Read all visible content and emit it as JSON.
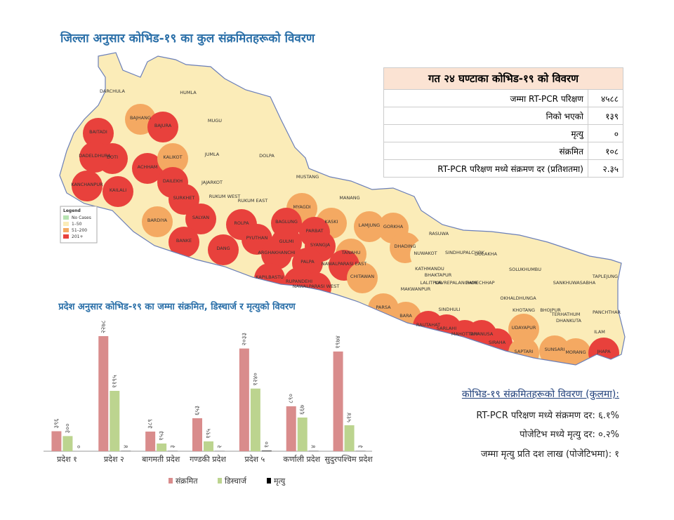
{
  "header": {
    "title": "जिल्ला अनुसार कोभिड-१९ का कुल संक्रमितहरूको विवरण"
  },
  "table": {
    "title": "गत २४ घण्टाका कोभिड-१९ को विवरण",
    "rows": [
      [
        "जम्मा RT-PCR परिक्षण",
        "४५८८"
      ],
      [
        "निको भएको",
        "१३९"
      ],
      [
        "मृत्यु",
        "०"
      ],
      [
        "संक्रमित",
        "१०८"
      ],
      [
        "RT-PCR परिक्षण मध्ये संक्रमण दर (प्रतिशतमा)",
        "२.३५"
      ]
    ]
  },
  "map": {
    "legend": {
      "title": "Legend",
      "items": [
        {
          "label": "No Cases",
          "color": "#b6e3b0"
        },
        {
          "label": "1–50",
          "color": "#fbecb8"
        },
        {
          "label": "51–200",
          "color": "#f4a962"
        },
        {
          "label": "201+",
          "color": "#e8413c"
        }
      ]
    },
    "districts": [
      {
        "label": "DARCHULA",
        "color": "#fbecb8"
      },
      {
        "label": "HUMLA",
        "color": "#fbecb8"
      },
      {
        "label": "BAJHANG",
        "color": "#f4a962"
      },
      {
        "label": "BAJURA",
        "color": "#e8413c"
      },
      {
        "label": "MUGU",
        "color": "#fbecb8"
      },
      {
        "label": "BAITADI",
        "color": "#e8413c"
      },
      {
        "label": "DOTI",
        "color": "#e8413c"
      },
      {
        "label": "DADELDHURA",
        "color": "#e8413c"
      },
      {
        "label": "ACHHAM",
        "color": "#e8413c"
      },
      {
        "label": "KALIKOT",
        "color": "#f4a962"
      },
      {
        "label": "JUMLA",
        "color": "#fbecb8"
      },
      {
        "label": "DOLPA",
        "color": "#fbecb8"
      },
      {
        "label": "KANCHANPUR",
        "color": "#e8413c"
      },
      {
        "label": "KAILALI",
        "color": "#e8413c"
      },
      {
        "label": "DAILEKH",
        "color": "#e8413c"
      },
      {
        "label": "JAJARKOT",
        "color": "#fbecb8"
      },
      {
        "label": "RUKUM WEST",
        "color": "#fbecb8"
      },
      {
        "label": "RUKUM EAST",
        "color": "#fbecb8"
      },
      {
        "label": "MUSTANG",
        "color": "#fbecb8"
      },
      {
        "label": "MANANG",
        "color": "#fbecb8"
      },
      {
        "label": "MYAGDI",
        "color": "#f4a962"
      },
      {
        "label": "SURKHET",
        "color": "#e8413c"
      },
      {
        "label": "BARDIYA",
        "color": "#f4a962"
      },
      {
        "label": "SALYAN",
        "color": "#e8413c"
      },
      {
        "label": "BAGLUNG",
        "color": "#e8413c"
      },
      {
        "label": "ROLPA",
        "color": "#e8413c"
      },
      {
        "label": "KASKI",
        "color": "#f4a962"
      },
      {
        "label": "LAMJUNG",
        "color": "#f4a962"
      },
      {
        "label": "GORKHA",
        "color": "#f4a962"
      },
      {
        "label": "RASUWA",
        "color": "#fbecb8"
      },
      {
        "label": "PARBAT",
        "color": "#e8413c"
      },
      {
        "label": "BANKE",
        "color": "#e8413c"
      },
      {
        "label": "DANG",
        "color": "#e8413c"
      },
      {
        "label": "PYUTHAN",
        "color": "#e8413c"
      },
      {
        "label": "GULMI",
        "color": "#e8413c"
      },
      {
        "label": "SYANGJA",
        "color": "#e8413c"
      },
      {
        "label": "TANAHU",
        "color": "#f4a962"
      },
      {
        "label": "DHADING",
        "color": "#f4a962"
      },
      {
        "label": "NUWAKOT",
        "color": "#fbecb8"
      },
      {
        "label": "SINDHUPALCHOK",
        "color": "#fbecb8"
      },
      {
        "label": "DOLAKHA",
        "color": "#fbecb8"
      },
      {
        "label": "ARGHAKHANCHI",
        "color": "#e8413c"
      },
      {
        "label": "PALPA",
        "color": "#e8413c"
      },
      {
        "label": "NAWALPARASI EAST",
        "color": "#e8413c"
      },
      {
        "label": "CHITAWAN",
        "color": "#f4a962"
      },
      {
        "label": "KATHMANDU",
        "color": "#fbecb8"
      },
      {
        "label": "BHAKTAPUR",
        "color": "#fbecb8"
      },
      {
        "label": "LALITPUR",
        "color": "#fbecb8"
      },
      {
        "label": "KAVREPALANCHOK",
        "color": "#fbecb8"
      },
      {
        "label": "RAMECHHAP",
        "color": "#fbecb8"
      },
      {
        "label": "SOLUKHUMBU",
        "color": "#fbecb8"
      },
      {
        "label": "SANKHUWASABHA",
        "color": "#fbecb8"
      },
      {
        "label": "TAPLEJUNG",
        "color": "#fbecb8"
      },
      {
        "label": "KAPILBASTU",
        "color": "#e8413c"
      },
      {
        "label": "RUPANDEHI",
        "color": "#e8413c"
      },
      {
        "label": "NAWALPARASI WEST",
        "color": "#e8413c"
      },
      {
        "label": "MAKWANPUR",
        "color": "#fbecb8"
      },
      {
        "label": "OKHALDHUNGA",
        "color": "#fbecb8"
      },
      {
        "label": "SINDHULI",
        "color": "#fbecb8"
      },
      {
        "label": "KHOTANG",
        "color": "#fbecb8"
      },
      {
        "label": "BHOJPUR",
        "color": "#fbecb8"
      },
      {
        "label": "TERHATHUM",
        "color": "#fbecb8"
      },
      {
        "label": "PANCHTHAR",
        "color": "#fbecb8"
      },
      {
        "label": "PARSA",
        "color": "#f4a962"
      },
      {
        "label": "BARA",
        "color": "#f4a962"
      },
      {
        "label": "RAUTAHAT",
        "color": "#e8413c"
      },
      {
        "label": "SARLAHI",
        "color": "#e8413c"
      },
      {
        "label": "MAHOTTARI",
        "color": "#e8413c"
      },
      {
        "label": "DHANUSA",
        "color": "#e8413c"
      },
      {
        "label": "UDAYAPUR",
        "color": "#f4a962"
      },
      {
        "label": "DHANKUTA",
        "color": "#fbecb8"
      },
      {
        "label": "ILAM",
        "color": "#fbecb8"
      },
      {
        "label": "SIRAHA",
        "color": "#e8413c"
      },
      {
        "label": "SAPTARI",
        "color": "#f4a962"
      },
      {
        "label": "SUNSARI",
        "color": "#f4a962"
      },
      {
        "label": "MORANG",
        "color": "#f4a962"
      },
      {
        "label": "JHAPA",
        "color": "#e8413c"
      }
    ]
  },
  "chart_data": {
    "type": "bar",
    "title": "प्रदेश अनुसार कोभिड-१९ का जम्मा संक्रमित, डिस्चार्ज र मृत्युको विवरण",
    "categories": [
      "प्रदेश १",
      "प्रदेश २",
      "बागमती प्रदेश",
      "गण्डकी प्रदेश",
      "प्रदेश ५",
      "कर्णाली प्रदेश",
      "सुदुरपश्चिम प्रदेश"
    ],
    "series": [
      {
        "name": "संक्रमित",
        "color": "#d98c8c",
        "values": [
          396,
          2278,
          389,
          653,
          2033,
          890,
          1974
        ],
        "value_labels": [
          "३९६",
          "२२७८",
          "३८९",
          "६५३",
          "२०३३",
          "८९०",
          "१९७४"
        ]
      },
      {
        "name": "डिस्चार्ज",
        "color": "#bcd48f",
        "values": [
          300,
          1195,
          153,
          195,
          1240,
          667,
          514
        ],
        "value_labels": [
          "३००",
          "११९५",
          "१५३",
          "१९५",
          "१२४०",
          "६६७",
          "५१४"
        ]
      },
      {
        "name": "मृत्यु",
        "color": "#000000",
        "values": [
          0,
          4,
          3,
          2,
          10,
          4,
          3
        ],
        "value_labels": [
          "०",
          "४",
          "३",
          "२",
          "१०",
          "४",
          "३"
        ]
      }
    ]
  },
  "summary": {
    "title": "कोभिड-१९ संक्रमितहरूको विवरण (कुलमा):",
    "lines": [
      "RT-PCR परिक्षण मध्ये संक्रमण दर: ६.१%",
      "पोजेटिभ मध्ये मृत्यु दर: ०.२%",
      "जम्मा मृत्यु प्रति दश लाख (पोजेटिभमा): १"
    ]
  }
}
